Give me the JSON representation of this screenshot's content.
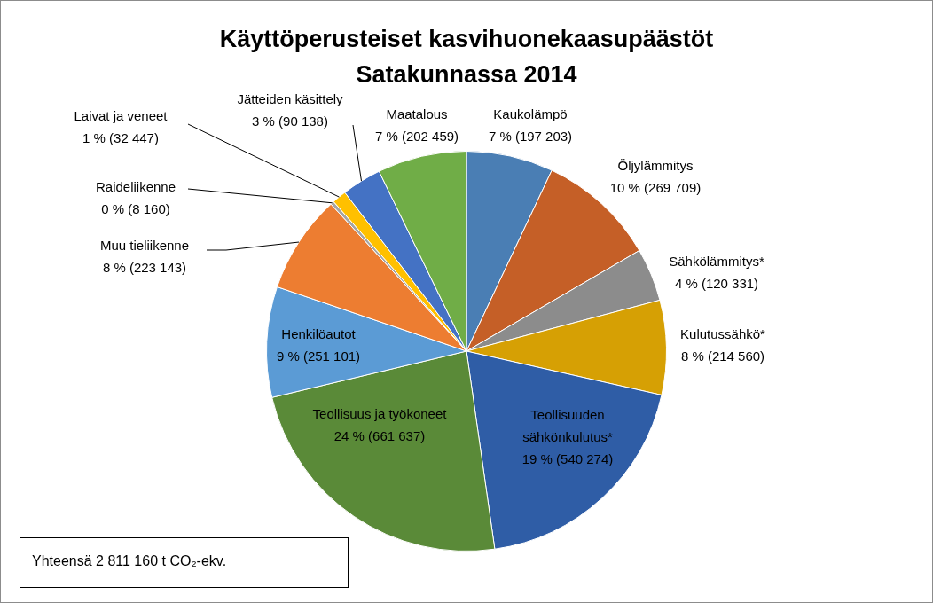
{
  "chart_data": {
    "type": "pie",
    "title": [
      "Käyttöperusteiset kasvihuonekaasupäästöt",
      "Satakunnassa 2014"
    ],
    "categories": [
      "Kaukolämpö",
      "Öljylämmitys",
      "Sähkölämmitys*",
      "Kulutussähkö*",
      "Teollisuuden sähkönkulutus*",
      "Teollisuus ja työkoneet",
      "Henkilöautot",
      "Muu tieliikenne",
      "Raideliikenne",
      "Laivat ja veneet",
      "Jätteiden käsittely",
      "Maatalous"
    ],
    "values": [
      197203,
      269709,
      120331,
      214560,
      540274,
      661637,
      251101,
      223143,
      8160,
      32447,
      90138,
      202459
    ],
    "value_labels": [
      "7 % (197 203)",
      "10 % (269 709)",
      "4 % (120 331)",
      "8 % (214 560)",
      "19 % (540 274)",
      "24 % (661 637)",
      "9 % (251 101)",
      "8 % (223 143)",
      "0 % (8 160)",
      "1 % (32 447)",
      "3 % (90 138)",
      "7 % (202 459)"
    ],
    "colors": [
      "#4a7eb4",
      "#c55f27",
      "#8c8c8c",
      "#d6a004",
      "#2f5da6",
      "#5a8a38",
      "#5b9bd5",
      "#ed7d31",
      "#a5a5a5",
      "#ffc000",
      "#4472c4",
      "#70ad47"
    ],
    "data_labels": true,
    "annotation": "Yhteensä 2 811 160 t CO₂-ekv."
  }
}
